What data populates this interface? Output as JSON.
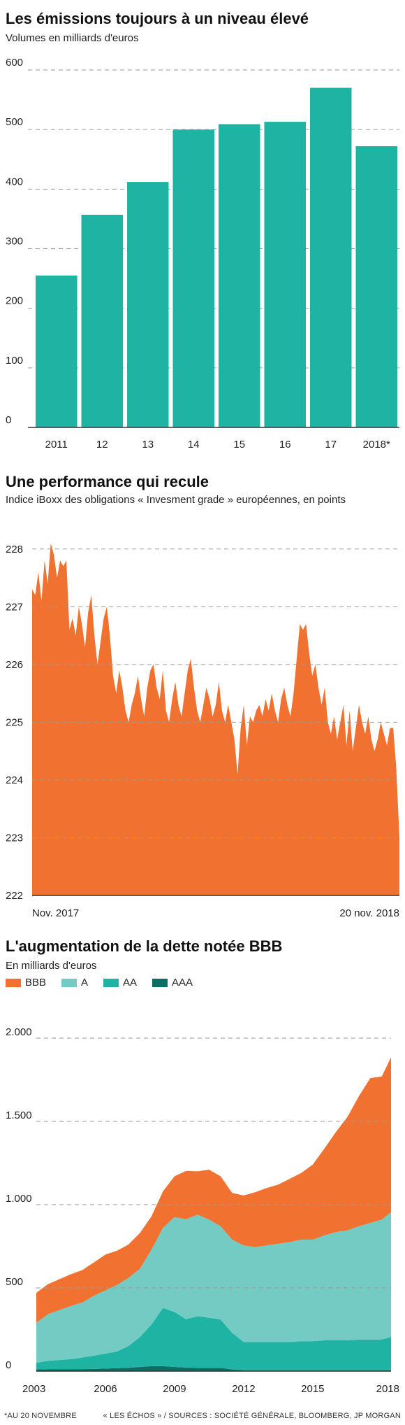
{
  "chart1": {
    "title": "Les émissions toujours à un niveau élevé",
    "subtitle": "Volumes en milliards d'euros",
    "color": "#1fb3a3"
  },
  "chart2": {
    "title": "Une performance qui recule",
    "subtitle": "Indice iBoxx des obligations « Invesment grade » européennes, en points",
    "color": "#f07130",
    "x_start_label": "Nov. 2017",
    "x_end_label": "20 nov. 2018"
  },
  "chart3": {
    "title": "L'augmentation de la dette notée BBB",
    "subtitle": "En milliards d'euros",
    "legend": [
      {
        "label": "BBB",
        "color": "#f07130"
      },
      {
        "label": "A",
        "color": "#74cbc3"
      },
      {
        "label": "AA",
        "color": "#1fb3a3"
      },
      {
        "label": "AAA",
        "color": "#0e6e63"
      }
    ]
  },
  "footer": {
    "note": "*AU 20 NOVEMBRE",
    "sources": "« LES ÉCHOS » / SOURCES : SOCIÉTÉ GÉNÉRALE, BLOOMBERG, JP MORGAN"
  },
  "chart_data": [
    {
      "type": "bar",
      "title": "Les émissions toujours à un niveau élevé",
      "subtitle": "Volumes en milliards d'euros",
      "categories": [
        "2011",
        "12",
        "13",
        "14",
        "15",
        "16",
        "17",
        "2018*"
      ],
      "values": [
        255,
        357,
        412,
        500,
        509,
        513,
        570,
        472
      ],
      "ylim": [
        0,
        600
      ],
      "yticks": [
        0,
        100,
        200,
        300,
        400,
        500,
        600
      ],
      "grid": true
    },
    {
      "type": "area",
      "title": "Une performance qui recule",
      "subtitle": "Indice iBoxx des obligations « Invesment grade » européennes, en points",
      "x_labels": [
        "Nov. 2017",
        "20 nov. 2018"
      ],
      "values": [
        227.3,
        227.2,
        227.6,
        227.1,
        227.8,
        227.4,
        228.1,
        227.9,
        227.5,
        227.8,
        227.7,
        227.8,
        226.6,
        226.8,
        226.5,
        227.0,
        226.7,
        226.3,
        226.9,
        227.2,
        226.5,
        226.0,
        226.4,
        226.8,
        227.0,
        226.5,
        225.8,
        225.5,
        225.9,
        225.6,
        225.2,
        225.0,
        225.3,
        225.5,
        225.8,
        225.4,
        225.1,
        225.6,
        225.9,
        226.0,
        225.6,
        225.4,
        225.9,
        225.2,
        225.0,
        225.4,
        225.7,
        225.3,
        225.1,
        225.5,
        225.9,
        226.1,
        225.6,
        225.2,
        225.0,
        225.3,
        225.6,
        225.4,
        225.1,
        225.3,
        225.7,
        225.2,
        225.0,
        225.3,
        225.0,
        224.7,
        224.1,
        224.9,
        225.3,
        224.6,
        225.1,
        225.0,
        225.2,
        225.3,
        225.1,
        225.4,
        225.2,
        225.5,
        225.2,
        225.0,
        225.4,
        225.6,
        225.3,
        225.1,
        225.5,
        226.1,
        226.7,
        226.6,
        226.7,
        226.2,
        225.8,
        226.0,
        225.6,
        225.3,
        225.6,
        225.0,
        224.8,
        225.1,
        224.7,
        225.0,
        225.3,
        224.6,
        225.2,
        224.5,
        224.9,
        225.3,
        225.0,
        224.8,
        225.1,
        224.7,
        224.5,
        224.7,
        225.0,
        224.8,
        224.6,
        224.9,
        224.9,
        224.2,
        223.0
      ],
      "ylim": [
        222,
        228.3
      ],
      "yticks": [
        222,
        223,
        224,
        225,
        226,
        227,
        228
      ],
      "grid": true
    },
    {
      "type": "area",
      "stacked": true,
      "title": "L'augmentation de la dette notée BBB",
      "subtitle": "En milliards d'euros",
      "x": [
        2003.0,
        2003.5,
        2004.0,
        2004.5,
        2005.0,
        2005.5,
        2006.0,
        2006.5,
        2007.0,
        2007.5,
        2008.0,
        2008.5,
        2009.0,
        2009.5,
        2010.0,
        2010.5,
        2011.0,
        2011.5,
        2012.0,
        2012.5,
        2013.0,
        2013.5,
        2014.0,
        2014.5,
        2015.0,
        2015.5,
        2016.0,
        2016.5,
        2017.0,
        2017.5,
        2018.0,
        2018.4
      ],
      "xticks": [
        2003,
        2006,
        2009,
        2012,
        2015,
        2018
      ],
      "series": [
        {
          "name": "AAA",
          "values": [
            10,
            12,
            12,
            12,
            12,
            13,
            15,
            18,
            20,
            25,
            30,
            30,
            25,
            22,
            20,
            20,
            20,
            10,
            5,
            5,
            5,
            5,
            5,
            5,
            5,
            5,
            5,
            5,
            5,
            5,
            5,
            5
          ]
        },
        {
          "name": "AA",
          "values": [
            40,
            50,
            55,
            60,
            70,
            80,
            90,
            100,
            130,
            180,
            250,
            350,
            330,
            290,
            310,
            300,
            290,
            220,
            170,
            170,
            170,
            170,
            170,
            175,
            175,
            180,
            180,
            180,
            185,
            185,
            185,
            200
          ]
        },
        {
          "name": "A",
          "values": [
            240,
            280,
            300,
            320,
            330,
            360,
            380,
            400,
            410,
            410,
            450,
            480,
            570,
            600,
            610,
            590,
            560,
            560,
            580,
            570,
            580,
            590,
            600,
            610,
            610,
            630,
            650,
            660,
            680,
            700,
            720,
            750
          ]
        },
        {
          "name": "BBB",
          "values": [
            180,
            180,
            185,
            190,
            195,
            200,
            215,
            205,
            200,
            215,
            200,
            220,
            245,
            290,
            260,
            300,
            300,
            280,
            300,
            330,
            345,
            355,
            380,
            400,
            450,
            520,
            600,
            680,
            780,
            870,
            860,
            930
          ]
        }
      ],
      "ylim": [
        0,
        2000
      ],
      "yticks": [
        0,
        500,
        1000,
        1500,
        2000
      ],
      "ytick_labels": [
        "0",
        "500",
        "1.000",
        "1.500",
        "2.000"
      ],
      "grid": true
    }
  ]
}
